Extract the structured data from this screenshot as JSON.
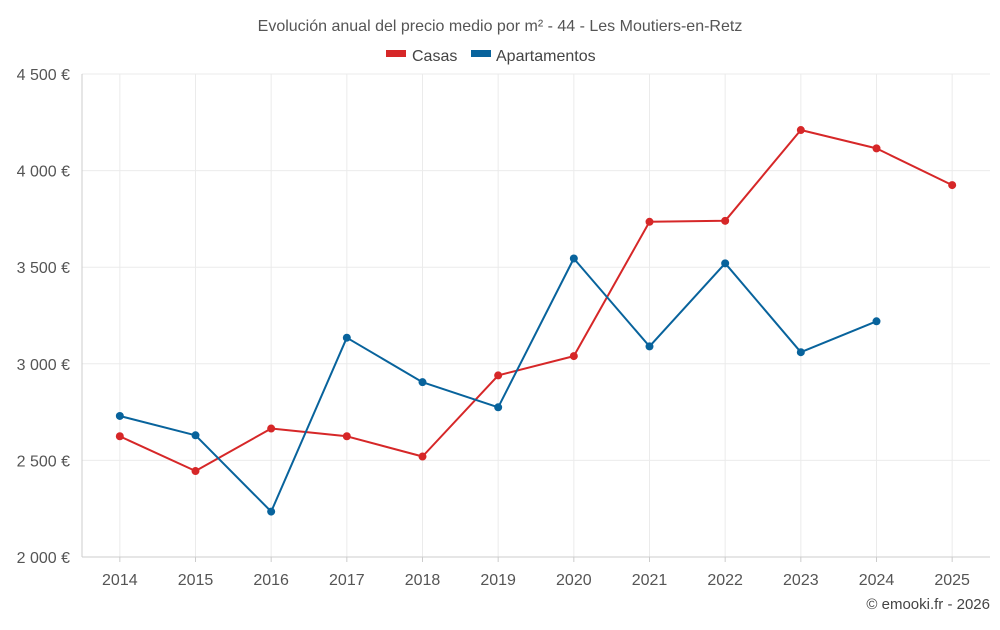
{
  "chart_data": {
    "type": "line",
    "title": "Evolución anual del precio medio por m² - 44 - Les Moutiers-en-Retz",
    "categories": [
      "2014",
      "2015",
      "2016",
      "2017",
      "2018",
      "2019",
      "2020",
      "2021",
      "2022",
      "2023",
      "2024",
      "2025"
    ],
    "series": [
      {
        "name": "Casas",
        "color": "#d62728",
        "values": [
          2625,
          2445,
          2665,
          2625,
          2520,
          2940,
          3040,
          3735,
          3740,
          4210,
          4115,
          3925
        ]
      },
      {
        "name": "Apartamentos",
        "color": "#08639c",
        "values": [
          2730,
          2630,
          2235,
          3135,
          2905,
          2775,
          3545,
          3090,
          3520,
          3060,
          3220,
          null
        ]
      }
    ],
    "ylim": [
      2000,
      4500
    ],
    "yticks": [
      2000,
      2500,
      3000,
      3500,
      4000,
      4500
    ],
    "ytick_labels": [
      "2 000 €",
      "2 500 €",
      "3 000 €",
      "3 500 €",
      "4 000 €",
      "4 500 €"
    ],
    "xlabel": "",
    "ylabel": "",
    "grid": true,
    "legend_position": "top-center"
  },
  "credit": "© emooki.fr - 2026"
}
